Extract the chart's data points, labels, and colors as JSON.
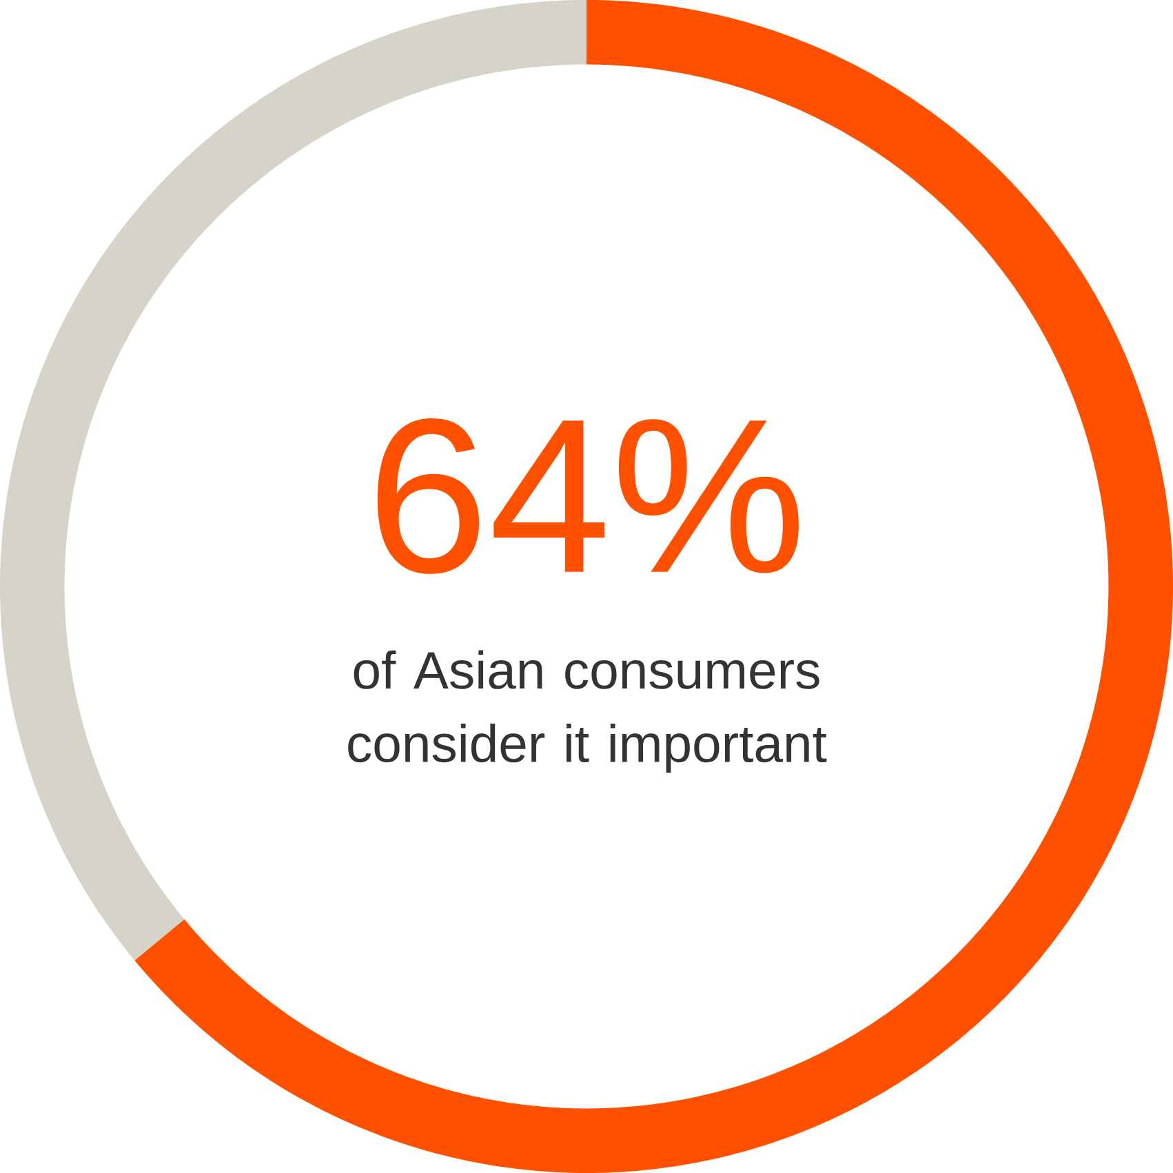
{
  "chart_data": {
    "type": "donut",
    "categories": [
      null,
      null
    ],
    "values": [
      64,
      36
    ],
    "colors": [
      "#ff5000",
      "#d6d4c8"
    ],
    "value_labels": [
      "64%",
      null
    ],
    "annotations": [
      "of Asian consumers consider it important"
    ]
  }
}
